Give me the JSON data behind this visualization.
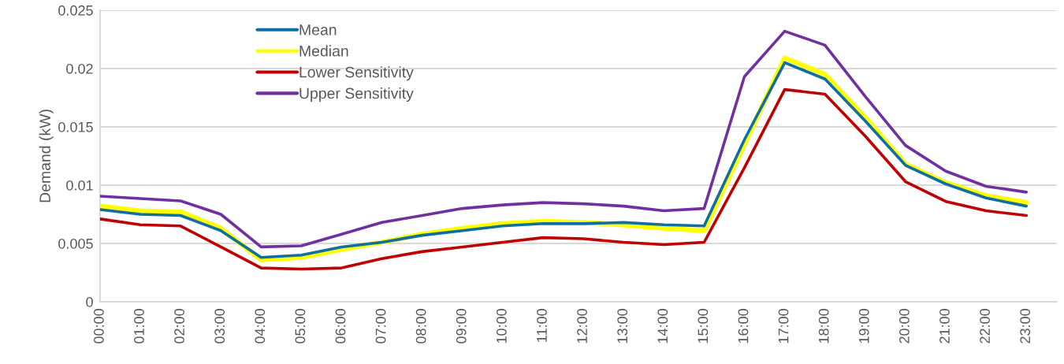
{
  "chart_data": {
    "type": "line",
    "ylabel": "Demand (kW)",
    "categories": [
      "00:00",
      "01:00",
      "02:00",
      "03:00",
      "04:00",
      "05:00",
      "06:00",
      "07:00",
      "08:00",
      "09:00",
      "10:00",
      "11:00",
      "12:00",
      "13:00",
      "14:00",
      "15:00",
      "16:00",
      "17:00",
      "18:00",
      "19:00",
      "20:00",
      "21:00",
      "22:00",
      "23:00"
    ],
    "series": [
      {
        "name": "Mean",
        "color": "#0f6fa5",
        "values": [
          0.0079,
          0.0075,
          0.0074,
          0.0061,
          0.0038,
          0.004,
          0.0047,
          0.0051,
          0.0057,
          0.0061,
          0.0065,
          0.0067,
          0.0067,
          0.0068,
          0.0066,
          0.0065,
          0.0139,
          0.0205,
          0.0191,
          0.0155,
          0.0117,
          0.0101,
          0.0089,
          0.0082
        ]
      },
      {
        "name": "Median",
        "color": "#ffff00",
        "values": [
          0.0082,
          0.0078,
          0.0077,
          0.0063,
          0.0036,
          0.0038,
          0.0045,
          0.0051,
          0.0058,
          0.0063,
          0.0067,
          0.0069,
          0.0068,
          0.0066,
          0.0063,
          0.0061,
          0.0135,
          0.0209,
          0.0195,
          0.0158,
          0.0118,
          0.0102,
          0.0091,
          0.0085
        ]
      },
      {
        "name": "Lower Sensitivity",
        "color": "#c00000",
        "values": [
          0.0071,
          0.0066,
          0.0065,
          0.0047,
          0.0029,
          0.0028,
          0.0029,
          0.0037,
          0.0043,
          0.0047,
          0.0051,
          0.0055,
          0.0054,
          0.0051,
          0.0049,
          0.0051,
          0.0115,
          0.0182,
          0.0178,
          0.0142,
          0.0103,
          0.0086,
          0.0078,
          0.0074
        ]
      },
      {
        "name": "Upper Sensitivity",
        "color": "#7030a0",
        "values": [
          0.00905,
          0.00885,
          0.00865,
          0.0075,
          0.0047,
          0.0048,
          0.0058,
          0.0068,
          0.0074,
          0.008,
          0.0083,
          0.0085,
          0.0084,
          0.0082,
          0.0078,
          0.008,
          0.0193,
          0.0232,
          0.022,
          0.0176,
          0.0134,
          0.0112,
          0.0099,
          0.0094
        ]
      }
    ],
    "ylim": [
      0,
      0.025
    ],
    "yticks": [
      0,
      0.005,
      0.01,
      0.015,
      0.02,
      0.025
    ],
    "grid": "y",
    "legend": "top left",
    "marker": "none",
    "line_style": "solid"
  }
}
